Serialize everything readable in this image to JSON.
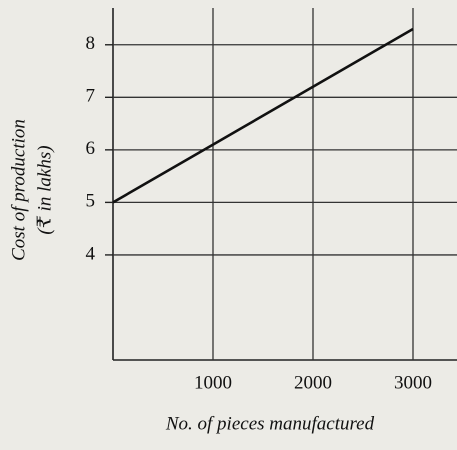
{
  "chart_data": {
    "type": "line",
    "y_label": [
      "Cost of production",
      "(₹ in lakhs)"
    ],
    "x_label": "No. of pieces manufactured",
    "x": [
      0,
      1000,
      2000,
      3000
    ],
    "series": [
      {
        "color": "#111111",
        "values": [
          5,
          6.1,
          7.2,
          8.3
        ]
      }
    ],
    "xlim": [
      0,
      3440
    ],
    "xticks": [
      1000,
      2000,
      3000
    ],
    "ylim": [
      2,
      8.7
    ],
    "yticks": [
      4,
      5,
      6,
      7,
      8
    ],
    "grid": true
  }
}
